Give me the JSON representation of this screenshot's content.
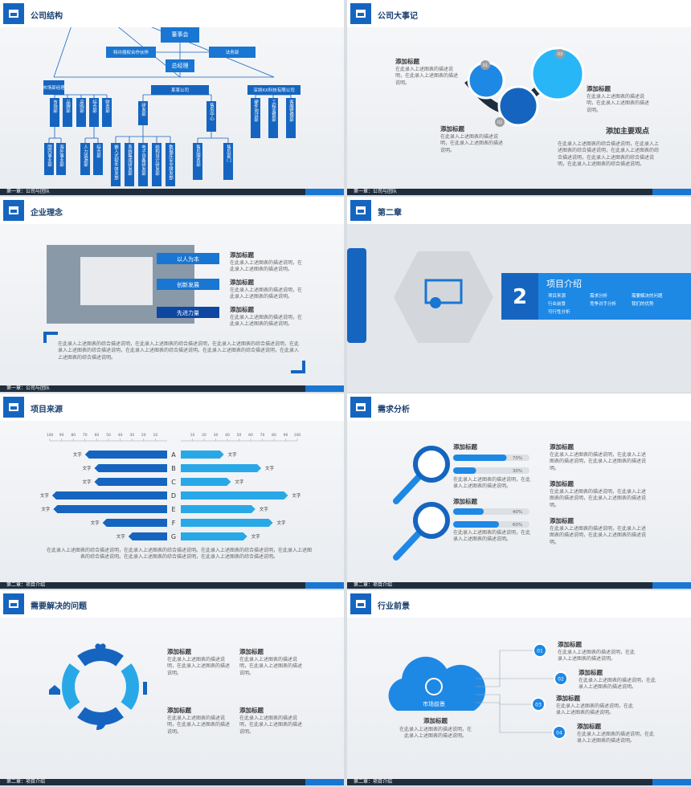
{
  "slides": [
    {
      "title": "公司结构",
      "footer": "第一章：公司与团队",
      "nodes": [
        "董事会",
        "特许授权合作伙伴",
        "法务部",
        "总经理",
        "市场部经理",
        "某某公司",
        "深圳XX科技有限公司",
        "市场部",
        "品牌部",
        "采购部",
        "综合部",
        "财务部",
        "研发部",
        "售后中心",
        "硬件测试部",
        "工程监督部",
        "客服管理部",
        "国内事业部",
        "海外事业部",
        "人力资源部",
        "综合部",
        "嵌入式软件研发部",
        "系统集成研发部",
        "电子设备研发部",
        "结构设计研发部",
        "数据库安全研发部",
        "售后服务部",
        "售后部门"
      ]
    },
    {
      "title": "公司大事记",
      "footer": "第一章：公司与团队",
      "badges": [
        "01",
        "02",
        "03"
      ],
      "items": [
        {
          "title": "添加标题",
          "text": "在此录入上述图表的描述说明，在此录入上述图表的描述说明。"
        },
        {
          "title": "添加标题",
          "text": "在此录入上述图表的描述说明，在此录入上述图表的描述说明。"
        },
        {
          "title": "添加标题",
          "text": "在此录入上述图表的描述说明，在此录入上述图表的描述说明。"
        }
      ],
      "main_title": "添加主要观点",
      "main_text": "在此录入上述图表的综合描述说明，在此录入上述图表的综合描述说明，在此录入上述图表的综合描述说明，在此录入上述图表的综合描述说明，在此录入上述图表的综合描述说明。"
    },
    {
      "title": "企业理念",
      "footer": "第一章：公司与团队",
      "tags": [
        "以人为本",
        "创新发展",
        "先进力量"
      ],
      "items": [
        {
          "title": "添加标题",
          "text": "在此录入上述图表的描述说明，在此录入上述图表的描述说明。"
        },
        {
          "title": "添加标题",
          "text": "在此录入上述图表的描述说明，在此录入上述图表的描述说明。"
        },
        {
          "title": "添加标题",
          "text": "在此录入上述图表的描述说明，在此录入上述图表的描述说明。"
        }
      ],
      "text": "在此录入上述图表的综合描述说明，在此录入上述图表的综合描述说明，在此录入上述图表的综合描述说明，在此录入上述图表的综合描述说明，在此录入上述图表的综合描述说明。在此录入上述图表的综合描述说明，在此录入上述图表的综合描述说明。"
    },
    {
      "title": "第二章",
      "number": "2",
      "heading": "项目介绍",
      "list": [
        "项目来源",
        "需求分析",
        "需要解决的问题",
        "行业前景",
        "竞争对手分析",
        "我们的优势",
        "可行性分析"
      ]
    },
    {
      "title": "项目来源",
      "footer": "第二章：项目介绍",
      "text": "在此录入上述图表的综合描述说明，在此录入上述图表的综合描述说明。在此录入上述图表的综合描述说明，在此录入上述图表的综合描述说明。在此录入上述图表的综合描述说明，在此录入上述图表的综合描述说明。"
    },
    {
      "title": "需求分析",
      "footer": "第二章：项目介绍",
      "items": [
        {
          "title": "添加标题",
          "text": "在此录入上述图表的描述说明，在此录入上述图表的描述说明。"
        },
        {
          "title": "添加标题",
          "text": "在此录入上述图表的描述说明，在此录入上述图表的描述说明。"
        }
      ],
      "bars": {
        "values": [
          70,
          30,
          40,
          60
        ],
        "value_labels": [
          "70%",
          "30%",
          "40%",
          "60%"
        ]
      },
      "notes": [
        {
          "title": "添加标题",
          "text": "在此录入上述图表的描述说明，在此录入上述图表的描述说明，在此录入上述图表的描述说明。"
        },
        {
          "title": "添加标题",
          "text": "在此录入上述图表的描述说明，在此录入上述图表的描述说明，在此录入上述图表的描述说明。"
        },
        {
          "title": "添加标题",
          "text": "在此录入上述图表的描述说明，在此录入上述图表的描述说明，在此录入上述图表的描述说明。"
        }
      ]
    },
    {
      "title": "需要解决的问题",
      "footer": "第二章：项目介绍",
      "items": [
        {
          "title": "添加标题",
          "text": "在此录入上述图表的描述说明，在此录入上述图表的描述说明。"
        },
        {
          "title": "添加标题",
          "text": "在此录入上述图表的描述说明，在此录入上述图表的描述说明。"
        },
        {
          "title": "添加标题",
          "text": "在此录入上述图表的描述说明，在此录入上述图表的描述说明。"
        },
        {
          "title": "添加标题",
          "text": "在此录入上述图表的描述说明，在此录入上述图表的描述说明。"
        }
      ]
    },
    {
      "title": "行业前景",
      "footer": "第二章：项目介绍",
      "cloud": "市场前景",
      "item": {
        "title": "添加标题",
        "text": "在此录入上述图表的描述说明，在此录入上述图表的描述说明。"
      },
      "badges": [
        "01",
        "02",
        "03",
        "04"
      ],
      "items": [
        {
          "title": "添加标题",
          "text": "在此录入上述图表的描述说明，在此录入上述图表的描述说明。"
        },
        {
          "title": "添加标题",
          "text": "在此录入上述图表的描述说明，在此录入上述图表的描述说明。"
        },
        {
          "title": "添加标题",
          "text": "在此录入上述图表的描述说明，在此录入上述图表的描述说明。"
        },
        {
          "title": "添加标题",
          "text": "在此录入上述图表的描述说明，在此录入上述图表的描述说明。"
        }
      ]
    }
  ],
  "chart_data": {
    "type": "butterfly-bar",
    "categories": [
      "A",
      "B",
      "C",
      "D",
      "E",
      "F",
      "G"
    ],
    "series": [
      {
        "color": "#1565c0",
        "values": [
          70,
          62,
          62,
          98,
          97,
          55,
          33
        ],
        "labels": [
          "文字",
          "文字",
          "文字",
          "文字",
          "文字",
          "文字",
          "文字"
        ]
      },
      {
        "color": "#29a8e8",
        "values": [
          37,
          69,
          43,
          92,
          64,
          79,
          57
        ],
        "labels": [
          "文字",
          "文字",
          "文字",
          "文字",
          "文字",
          "文字",
          "文字"
        ]
      }
    ],
    "xlim": [
      0,
      100
    ],
    "xticks": [
      10,
      20,
      30,
      40,
      50,
      60,
      70,
      80,
      90,
      100
    ]
  }
}
